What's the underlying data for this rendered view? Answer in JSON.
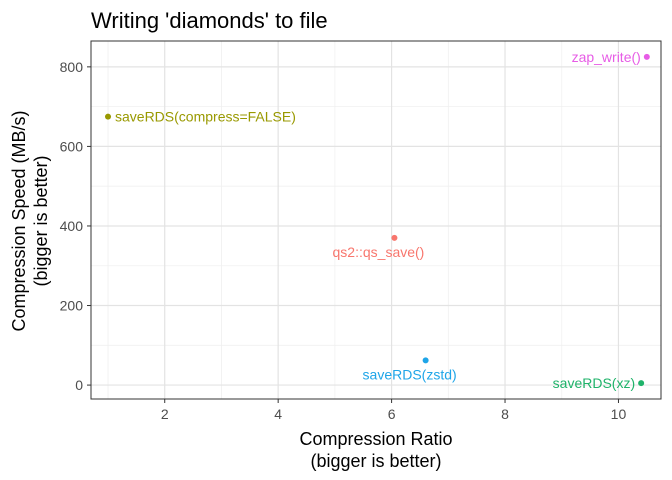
{
  "chart_data": {
    "type": "scatter",
    "title": "Writing 'diamonds' to file",
    "xlabel": [
      "Compression Ratio",
      "(bigger is better)"
    ],
    "ylabel": [
      "Compression Speed (MB/s)",
      "(bigger is better)"
    ],
    "xlim": [
      0.7,
      10.75
    ],
    "ylim": [
      -35,
      865
    ],
    "xticks": [
      2,
      4,
      6,
      8,
      10
    ],
    "yticks": [
      0,
      200,
      400,
      600,
      800
    ],
    "grid": true,
    "legend": "none",
    "points": [
      {
        "label": "saveRDS(compress=FALSE)",
        "x": 1.0,
        "y": 675,
        "color": "#999900",
        "label_side": "right"
      },
      {
        "label": "qs2::qs_save()",
        "x": 6.05,
        "y": 370,
        "color": "#f8766d",
        "label_side": "below"
      },
      {
        "label": "saveRDS(zstd)",
        "x": 6.6,
        "y": 62,
        "color": "#1ea5e8",
        "label_side": "below"
      },
      {
        "label": "saveRDS(xz)",
        "x": 10.4,
        "y": 5,
        "color": "#1fb36a",
        "label_side": "left"
      },
      {
        "label": "zap_write()",
        "x": 10.5,
        "y": 825,
        "color": "#e75ce6",
        "label_side": "left"
      }
    ]
  }
}
